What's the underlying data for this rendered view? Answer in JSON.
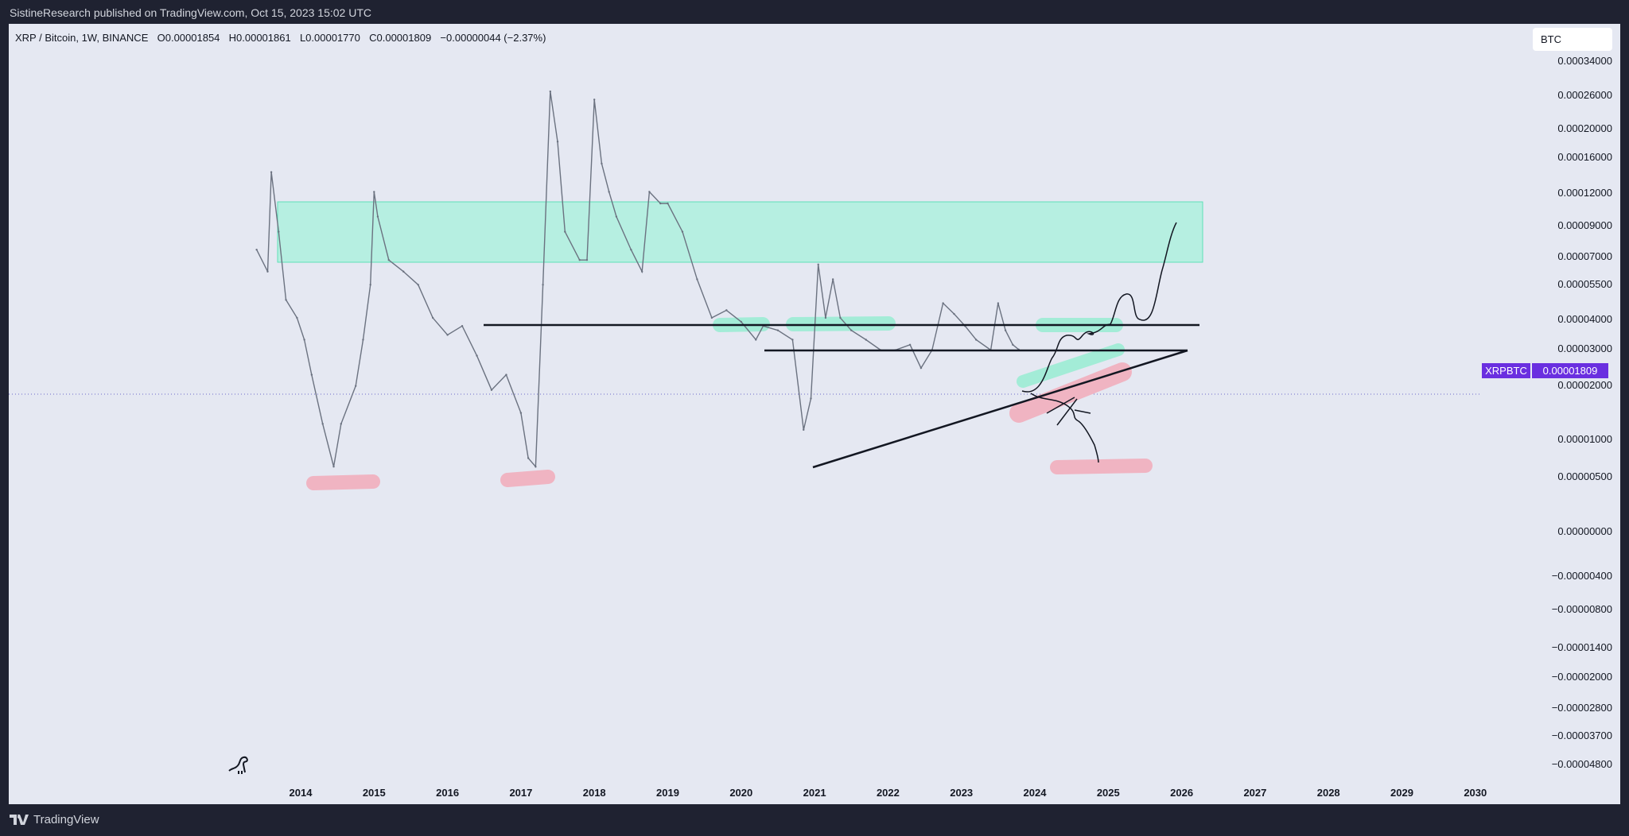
{
  "header": {
    "published": "SistineResearch published on TradingView.com, Oct 15, 2023 15:02 UTC"
  },
  "legend": {
    "symbol": "XRP / Bitcoin, 1W, BINANCE",
    "open": "O0.00001854",
    "high": "H0.00001861",
    "low": "L0.00001770",
    "close": "C0.00001809",
    "change": "−0.00000044 (−2.37%)"
  },
  "currency_button": "BTC",
  "price_tag": {
    "symbol": "XRPBTC",
    "price": "0.00001809"
  },
  "footer": {
    "brand": "TradingView"
  },
  "colors": {
    "background": "#e5e8f2",
    "frame": "#1f2231",
    "candles": "#6b7280",
    "green_zone": "#2ee6b0",
    "red_mark": "#f4a3b4",
    "tag": "#6a2fe0"
  },
  "chart_data": {
    "type": "line",
    "title": "XRP / Bitcoin, 1W, BINANCE",
    "y_scale": "log",
    "x_ticks": [
      "2014",
      "2015",
      "2016",
      "2017",
      "2018",
      "2019",
      "2020",
      "2021",
      "2022",
      "2023",
      "2024",
      "2025",
      "2026",
      "2027",
      "2028",
      "2029",
      "2030"
    ],
    "y_ticks": [
      "0.00034000",
      "0.00026000",
      "0.00020000",
      "0.00016000",
      "0.00012000",
      "0.00009000",
      "0.00007000",
      "0.00005500",
      "0.00004000",
      "0.00003000",
      "0.00002000",
      "0.00001000",
      "0.00000500",
      "0.00000000",
      "−0.00000400",
      "−0.00000800",
      "−0.00001400",
      "−0.00002000",
      "−0.00002800",
      "−0.00003700",
      "−0.00004800"
    ],
    "x_range": [
      2013.4,
      2030.5
    ],
    "series": [
      {
        "x": [
          2013.4,
          2013.55,
          2013.6,
          2013.7,
          2013.8,
          2013.95,
          2014.05,
          2014.15,
          2014.3,
          2014.45,
          2014.55,
          2014.75,
          2014.85,
          2014.95,
          2015.0,
          2015.05,
          2015.2,
          2015.4,
          2015.6,
          2015.8,
          2016.0,
          2016.2,
          2016.4,
          2016.6,
          2016.8,
          2017.0,
          2017.1,
          2017.2,
          2017.3,
          2017.4,
          2017.5,
          2017.6,
          2017.8,
          2017.9,
          2018.0,
          2018.1,
          2018.2,
          2018.3,
          2018.5,
          2018.65,
          2018.75,
          2018.9,
          2019.0,
          2019.2,
          2019.4,
          2019.6,
          2019.8,
          2020.0,
          2020.2,
          2020.3,
          2020.5,
          2020.7,
          2020.85,
          2020.95,
          2021.05,
          2021.15,
          2021.25,
          2021.35,
          2021.5,
          2021.7,
          2021.9,
          2022.1,
          2022.3,
          2022.45,
          2022.6,
          2022.75,
          2022.9,
          2023.05,
          2023.2,
          2023.4,
          2023.5,
          2023.6,
          2023.7,
          2023.78
        ],
        "y": [
          5e-05,
          4e-05,
          0.00011,
          6e-05,
          3e-05,
          2.5e-05,
          2e-05,
          1.4e-05,
          8.5e-06,
          5.5e-06,
          8.5e-06,
          1.25e-05,
          2e-05,
          3.5e-05,
          9e-05,
          7e-05,
          4.5e-05,
          4e-05,
          3.5e-05,
          2.5e-05,
          2.1e-05,
          2.3e-05,
          1.7e-05,
          1.2e-05,
          1.4e-05,
          9.5e-06,
          6e-06,
          5.5e-06,
          3.5e-05,
          0.00025,
          0.00015,
          6e-05,
          4.5e-05,
          4.5e-05,
          0.00023,
          0.00012,
          9e-05,
          7e-05,
          5e-05,
          4e-05,
          9e-05,
          8e-05,
          8e-05,
          6e-05,
          3.7e-05,
          2.5e-05,
          2.7e-05,
          2.4e-05,
          2e-05,
          2.3e-05,
          2.2e-05,
          2e-05,
          8e-06,
          1.1e-05,
          4.3e-05,
          2.5e-05,
          3.7e-05,
          2.5e-05,
          2.2e-05,
          2e-05,
          1.8e-05,
          1.8e-05,
          1.9e-05,
          1.5e-05,
          1.8e-05,
          2.9e-05,
          2.6e-05,
          2.3e-05,
          2e-05,
          1.8e-05,
          2.9e-05,
          2.2e-05,
          1.9e-05,
          1.81e-05
        ]
      }
    ]
  }
}
